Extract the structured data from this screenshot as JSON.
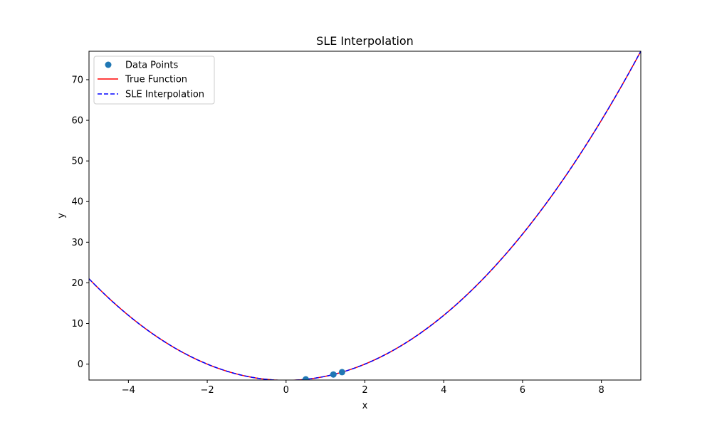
{
  "chart_data": {
    "type": "line",
    "title": "SLE Interpolation",
    "xlabel": "x",
    "ylabel": "y",
    "xlim": [
      -5,
      9
    ],
    "ylim": [
      -3.92,
      77
    ],
    "x_ticks": [
      -4,
      -2,
      0,
      2,
      4,
      6,
      8
    ],
    "y_ticks": [
      0,
      10,
      20,
      30,
      40,
      50,
      60,
      70
    ],
    "x_tick_labels": [
      "−4",
      "−2",
      "0",
      "2",
      "4",
      "6",
      "8"
    ],
    "y_tick_labels": [
      "0",
      "10",
      "20",
      "30",
      "40",
      "50",
      "60",
      "70"
    ],
    "grid": false,
    "legend_position": "top-left",
    "series": [
      {
        "name": "Data Points",
        "kind": "scatter",
        "color": "#1f77b4",
        "points": [
          [
            0.5,
            -3.75
          ],
          [
            1.2,
            -2.56
          ],
          [
            1.42,
            -1.98
          ]
        ]
      },
      {
        "name": "True Function",
        "kind": "line",
        "style": "solid",
        "color": "#ff0000",
        "function": {
          "form": "quadratic",
          "a": 1,
          "b": 0,
          "c": -4
        },
        "x_range": [
          -5,
          9
        ]
      },
      {
        "name": "SLE Interpolation",
        "kind": "line",
        "style": "dashed",
        "color": "#0000ff",
        "function": {
          "form": "quadratic",
          "a": 1,
          "b": 0,
          "c": -4
        },
        "x_range": [
          -5,
          9
        ]
      }
    ]
  }
}
